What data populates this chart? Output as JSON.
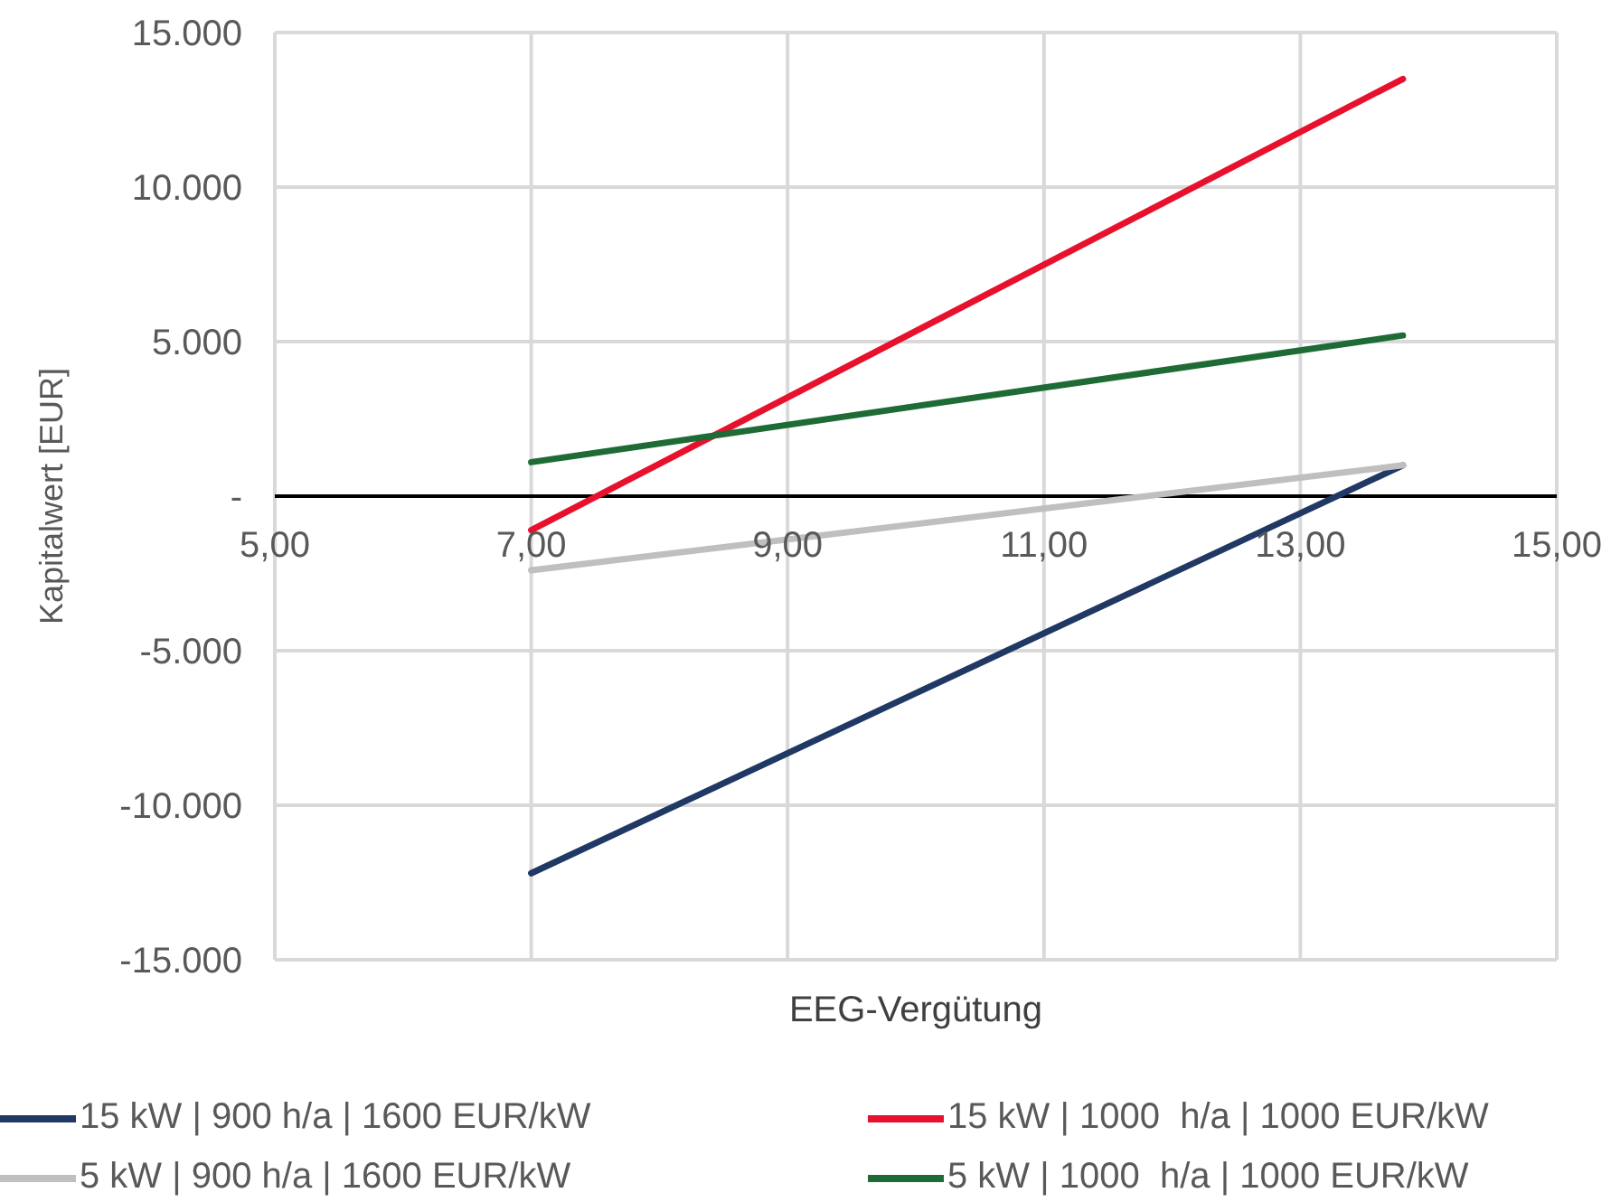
{
  "chart_data": {
    "type": "line",
    "xlabel": "EEG-Vergütung",
    "ylabel": "Kapitalwert [EUR]",
    "xlim": [
      5,
      15
    ],
    "xticks": [
      {
        "value": 5,
        "label": "5,00"
      },
      {
        "value": 7,
        "label": "7,00"
      },
      {
        "value": 9,
        "label": "9,00"
      },
      {
        "value": 11,
        "label": "11,00"
      },
      {
        "value": 13,
        "label": "13,00"
      },
      {
        "value": 15,
        "label": "15,00"
      }
    ],
    "ylim": [
      -15000,
      15000
    ],
    "yticks": [
      {
        "value": -15000,
        "label": "-15.000"
      },
      {
        "value": -10000,
        "label": "-10.000"
      },
      {
        "value": -5000,
        "label": "-5.000"
      },
      {
        "value": 0,
        "label": "-"
      },
      {
        "value": 5000,
        "label": "5.000"
      },
      {
        "value": 10000,
        "label": "10.000"
      },
      {
        "value": 15000,
        "label": "15.000"
      }
    ],
    "grid": true,
    "legend": "bottom",
    "marker": "none",
    "line_style": "solid",
    "x": [
      7,
      13.8
    ],
    "series": [
      {
        "name": "15 kW | 900 h/a | 1600 EUR/kW",
        "color": "#203864",
        "values": [
          -12200,
          1000
        ]
      },
      {
        "name": "15 kW | 1000  h/a | 1000 EUR/kW",
        "color": "#e8112d",
        "values": [
          -1100,
          13500
        ]
      },
      {
        "name": "5 kW | 900 h/a | 1600 EUR/kW",
        "color": "#bfbfbf",
        "values": [
          -2400,
          1000
        ]
      },
      {
        "name": "5 kW | 1000  h/a | 1000 EUR/kW",
        "color": "#1e6b35",
        "values": [
          1100,
          5200
        ]
      }
    ]
  }
}
